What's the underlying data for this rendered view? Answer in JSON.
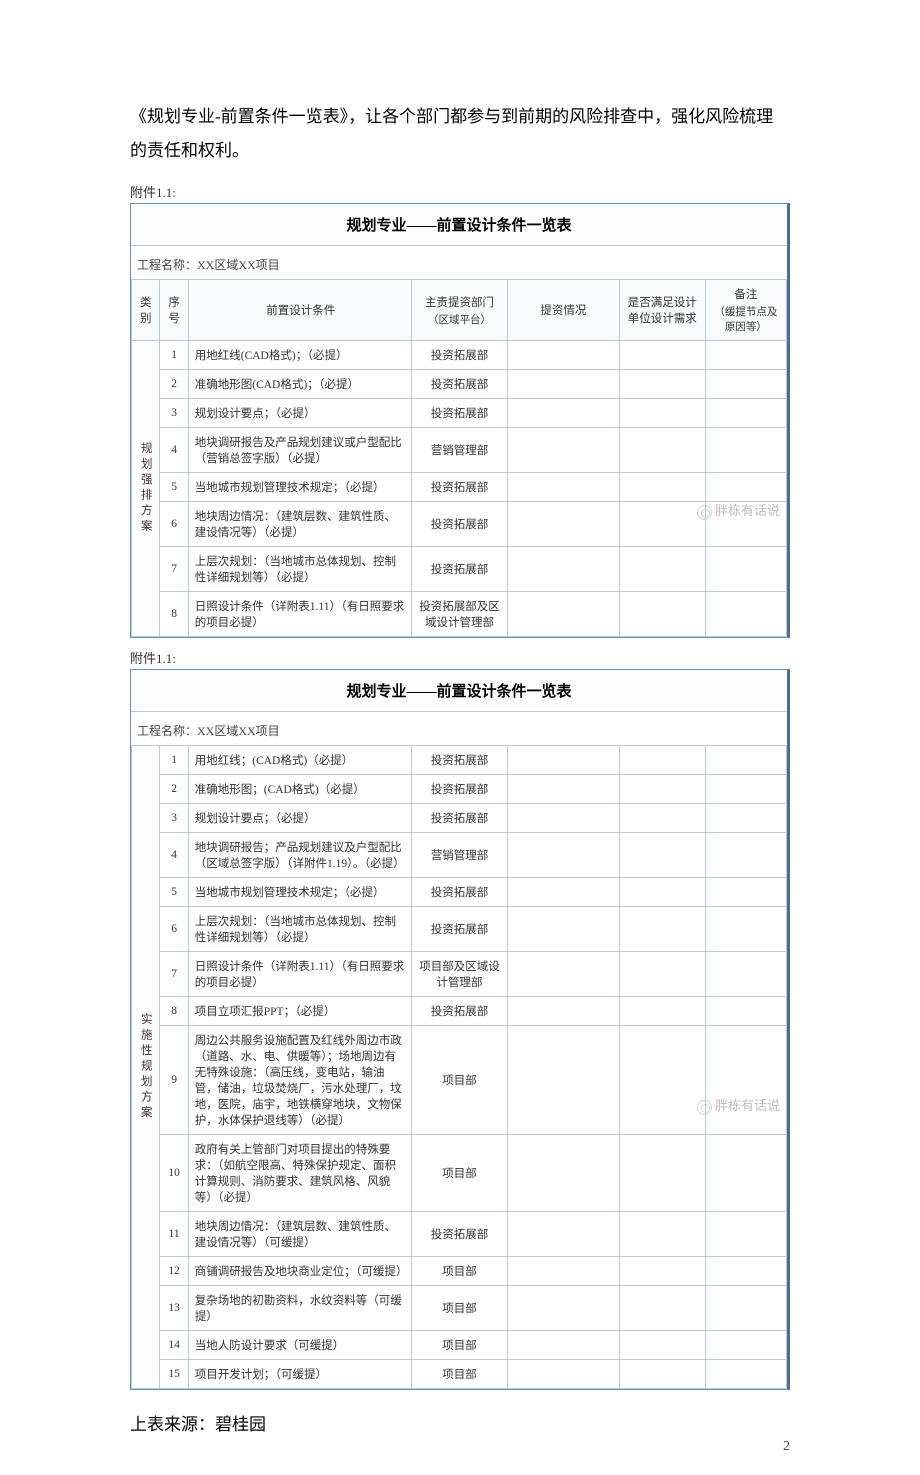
{
  "page_number": "2",
  "intro": "《规划专业-前置条件一览表》，让各个部门都参与到前期的风险排查中，强化风险梳理的责任和权利。",
  "attachment_label": "附件1.1:",
  "table_title": "规划专业——前置设计条件一览表",
  "project_name": "工程名称：XX区域XX项目",
  "source_text": "上表来源：碧桂园",
  "watermark_text": "胖栋有话说",
  "headers": {
    "category": "类别",
    "seq": "序号",
    "cond": "前置设计条件",
    "dept": "主责提资部门",
    "dept_sub": "（区域平台）",
    "status": "提资情况",
    "meet": "是否满足设计单位设计需求",
    "remark": "备注",
    "remark_sub": "（缓提节点及原因等）"
  },
  "table1": {
    "category": "规划强排方案",
    "rows": [
      {
        "seq": "1",
        "cond": "用地红线(CAD格式)；（必提）",
        "dept": "投资拓展部"
      },
      {
        "seq": "2",
        "cond": "准确地形图(CAD格式)；（必提）",
        "dept": "投资拓展部"
      },
      {
        "seq": "3",
        "cond": "规划设计要点；（必提）",
        "dept": "投资拓展部"
      },
      {
        "seq": "4",
        "cond": "地块调研报告及产品规划建议或户型配比（营销总签字版）（必提）",
        "dept": "营销管理部"
      },
      {
        "seq": "5",
        "cond": "当地城市规划管理技术规定；（必提）",
        "dept": "投资拓展部"
      },
      {
        "seq": "6",
        "cond": "地块周边情况：（建筑层数、建筑性质、建设情况等）（必提）",
        "dept": "投资拓展部"
      },
      {
        "seq": "7",
        "cond": "上层次规划：（当地城市总体规划、控制性详细规划等）（必提）",
        "dept": "投资拓展部"
      },
      {
        "seq": "8",
        "cond": "日照设计条件（详附表1.11）（有日照要求的项目必提）",
        "dept": "投资拓展部及区域设计管理部"
      }
    ]
  },
  "table2": {
    "category": "实施性规划方案",
    "rows": [
      {
        "seq": "1",
        "cond": "用地红线；(CAD格式)（必提）",
        "dept": "投资拓展部"
      },
      {
        "seq": "2",
        "cond": "准确地形图；(CAD格式)（必提）",
        "dept": "投资拓展部"
      },
      {
        "seq": "3",
        "cond": "规划设计要点；（必提）",
        "dept": "投资拓展部"
      },
      {
        "seq": "4",
        "cond": "地块调研报告；产品规划建议及户型配比（区域总签字版）（详附件1.19）。（必提）",
        "dept": "营销管理部"
      },
      {
        "seq": "5",
        "cond": "当地城市规划管理技术规定；（必提）",
        "dept": "投资拓展部"
      },
      {
        "seq": "6",
        "cond": "上层次规划：（当地城市总体规划、控制性详细规划等）（必提）",
        "dept": "投资拓展部"
      },
      {
        "seq": "7",
        "cond": "日照设计条件（详附表1.11）（有日照要求的项目必提）",
        "dept": "项目部及区域设计管理部"
      },
      {
        "seq": "8",
        "cond": "项目立项汇报PPT；（必提）",
        "dept": "投资拓展部"
      },
      {
        "seq": "9",
        "cond": "周边公共服务设施配置及红线外周边市政（道路、水、电、供暖等）；场地周边有无特殊设施：（高压线，变电站，输油管，储油，垃圾焚烧厂，污水处理厂，坟地，医院，庙宇，地铁横穿地块，文物保护，水体保护退线等）（必提）",
        "dept": "项目部"
      },
      {
        "seq": "10",
        "cond": "政府有关上管部门对项目提出的特殊要求：（如航空限高、特殊保护规定、面积计算规则、消防要求、建筑风格、风貌等）（必提）",
        "dept": "项目部"
      },
      {
        "seq": "11",
        "cond": "地块周边情况：（建筑层数、建筑性质、建设情况等）（可缓提）",
        "dept": "投资拓展部"
      },
      {
        "seq": "12",
        "cond": "商铺调研报告及地块商业定位；（可缓提）",
        "dept": "项目部"
      },
      {
        "seq": "13",
        "cond": "复杂场地的初勘资料，水纹资料等（可缓提）",
        "dept": "项目部"
      },
      {
        "seq": "14",
        "cond": "当地人防设计要求（可缓提）",
        "dept": "项目部"
      },
      {
        "seq": "15",
        "cond": "项目开发计划；（可缓提）",
        "dept": "项目部"
      }
    ]
  },
  "colors": {
    "border_main": "#6a8fb5",
    "border_dark": "#4a6d95",
    "border_cell": "#b8c8d8",
    "text": "#333333",
    "bg": "#ffffff"
  }
}
